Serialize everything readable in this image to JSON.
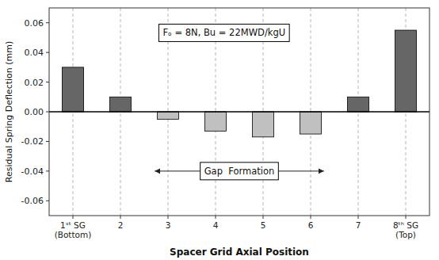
{
  "chart_data": {
    "type": "bar",
    "categories": [
      "1ˢᵗ SG\n(Bottom)",
      "2",
      "3",
      "4",
      "5",
      "6",
      "7",
      "8ᵗʰ SG\n(Top)"
    ],
    "values": [
      0.03,
      0.01,
      -0.005,
      -0.013,
      -0.017,
      -0.015,
      0.01,
      0.055
    ],
    "colors": [
      "#666666",
      "#666666",
      "#c0c0c0",
      "#c0c0c0",
      "#c0c0c0",
      "#c0c0c0",
      "#666666",
      "#666666"
    ],
    "xlabel": "Spacer Grid Axial Position",
    "ylabel": "Residual Spring Deflection (mm)",
    "ylim": [
      -0.07,
      0.07
    ],
    "yticks": [
      -0.06,
      -0.04,
      -0.02,
      {
        "value": 0,
        "label": "0.00"
      },
      0.02,
      0.04,
      0.06
    ],
    "grid": "x",
    "annotations": [
      "Fₒ = 8N, Bu = 22MWD/kgU",
      "Gap  Formation"
    ]
  }
}
